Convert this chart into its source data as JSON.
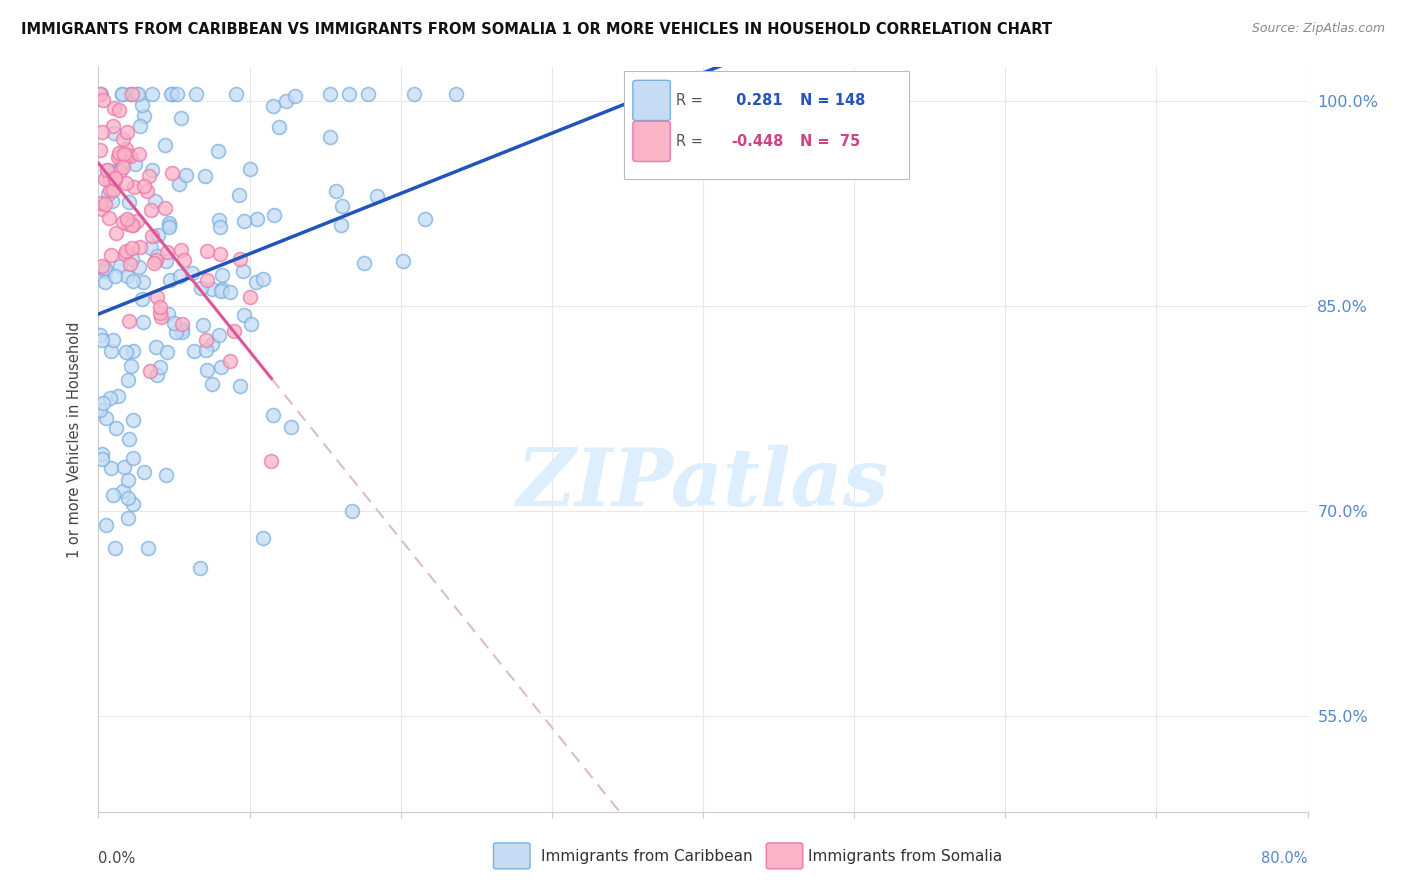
{
  "title": "IMMIGRANTS FROM CARIBBEAN VS IMMIGRANTS FROM SOMALIA 1 OR MORE VEHICLES IN HOUSEHOLD CORRELATION CHART",
  "source": "Source: ZipAtlas.com",
  "ylabel": "1 or more Vehicles in Household",
  "watermark": "ZIPatlas",
  "caribbean_R": 0.281,
  "caribbean_N": 148,
  "somalia_R": -0.448,
  "somalia_N": 75,
  "background_color": "#ffffff",
  "blue_fill": "#c6dcf5",
  "blue_edge": "#7ab0e0",
  "pink_fill": "#fbb4c6",
  "pink_edge": "#e87aab",
  "blue_line_color": "#2255bb",
  "pink_line_color": "#dd5599",
  "pink_dash_color": "#ddbbcc",
  "grid_color": "#e8e8e8",
  "right_axis_color": "#5588cc",
  "title_color": "#111111",
  "source_color": "#888888",
  "watermark_color": "#ddeeff",
  "xmin": 0.0,
  "xmax": 0.8,
  "ymin": 0.48,
  "ymax": 1.025,
  "ytick_positions": [
    0.55,
    0.7,
    0.85,
    1.0
  ],
  "ytick_labels": [
    "55.0%",
    "70.0%",
    "85.0%",
    "100.0%"
  ],
  "marker_size": 100
}
